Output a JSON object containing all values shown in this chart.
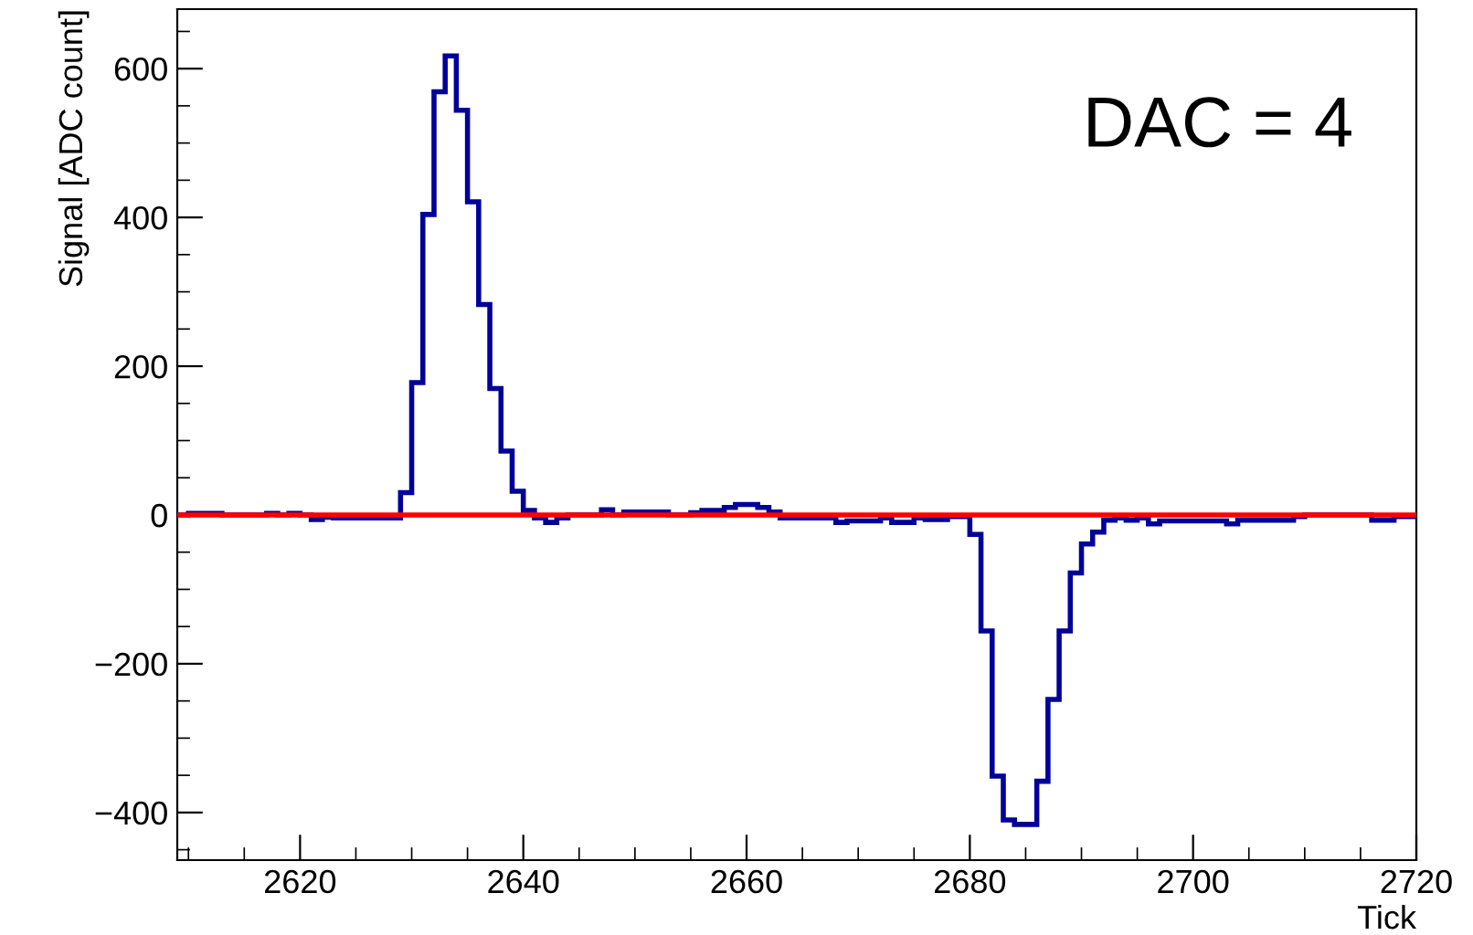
{
  "chart_data": {
    "type": "histogram",
    "xlabel": "Tick",
    "ylabel": "Signal [ADC count]",
    "annotations": [
      "DAC = 4"
    ],
    "bins": [
      2609,
      2610,
      2611,
      2612,
      2613,
      2614,
      2615,
      2616,
      2617,
      2618,
      2619,
      2620,
      2621,
      2622,
      2623,
      2624,
      2625,
      2626,
      2627,
      2628,
      2629,
      2630,
      2631,
      2632,
      2633,
      2634,
      2635,
      2636,
      2637,
      2638,
      2639,
      2640,
      2641,
      2642,
      2643,
      2644,
      2645,
      2646,
      2647,
      2648,
      2649,
      2650,
      2651,
      2652,
      2653,
      2654,
      2655,
      2656,
      2657,
      2658,
      2659,
      2660,
      2661,
      2662,
      2663,
      2664,
      2665,
      2666,
      2667,
      2668,
      2669,
      2670,
      2671,
      2672,
      2673,
      2674,
      2675,
      2676,
      2677,
      2678,
      2679,
      2680,
      2681,
      2682,
      2683,
      2684,
      2685,
      2686,
      2687,
      2688,
      2689,
      2690,
      2691,
      2692,
      2693,
      2694,
      2695,
      2696,
      2697,
      2698,
      2699,
      2700,
      2701,
      2702,
      2703,
      2704,
      2705,
      2706,
      2707,
      2708,
      2709,
      2710,
      2711,
      2712,
      2713,
      2714,
      2715,
      2716,
      2717,
      2718,
      2719,
      2720
    ],
    "values": [
      0,
      2,
      2,
      2,
      0,
      0,
      0,
      0,
      2,
      0,
      2,
      0,
      -6,
      -3,
      -4,
      -4,
      -4,
      -4,
      -4,
      -4,
      30,
      178,
      404,
      569,
      617,
      544,
      421,
      283,
      170,
      86,
      32,
      6,
      -4,
      -10,
      -4,
      0,
      0,
      0,
      7,
      0,
      4,
      4,
      4,
      4,
      0,
      0,
      3,
      6,
      6,
      10,
      14,
      14,
      10,
      4,
      -4,
      -4,
      -4,
      -4,
      -4,
      -10,
      -8,
      -8,
      -8,
      -4,
      -10,
      -10,
      -4,
      -6,
      -6,
      -2,
      -2,
      -26,
      -156,
      -351,
      -410,
      -416,
      -416,
      -358,
      -248,
      -156,
      -78,
      -39,
      -23,
      -7,
      -4,
      -7,
      -4,
      -12,
      -8,
      -8,
      -8,
      -8,
      -8,
      -8,
      -12,
      -7,
      -7,
      -7,
      -7,
      -7,
      -2,
      0,
      0,
      0,
      0,
      0,
      0,
      -7,
      -7,
      -2,
      -2
    ],
    "color": "#000099",
    "xlim": [
      2609,
      2720
    ],
    "xticks": [
      2620,
      2640,
      2660,
      2680,
      2700,
      2720
    ],
    "ylim": [
      -464,
      680
    ],
    "yticks": [
      -400,
      -200,
      0,
      200,
      400,
      600
    ],
    "ref_lines": [
      {
        "axis": "y",
        "value": 0,
        "color": "#ff0000"
      }
    ],
    "grid": false,
    "legend": false
  }
}
